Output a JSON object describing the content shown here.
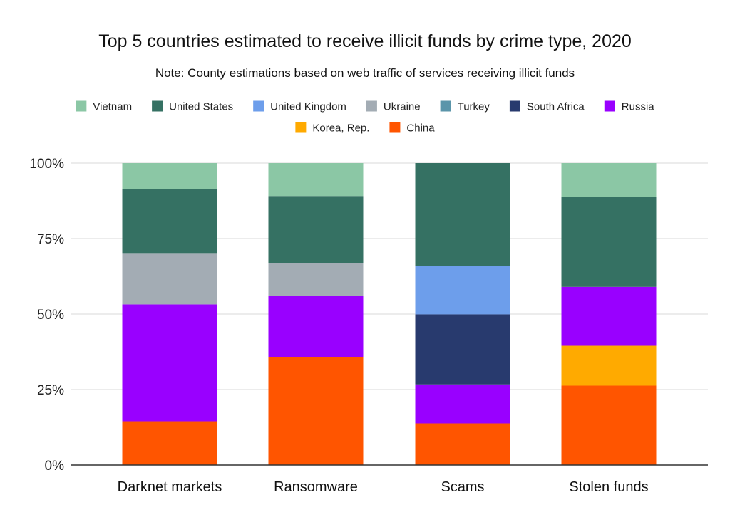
{
  "chart_data": {
    "type": "bar",
    "stacked": true,
    "percent": true,
    "title": "Top 5 countries estimated to receive illicit funds by crime type, 2020",
    "subtitle": "Note: County estimations based on web traffic of services receiving illicit funds",
    "categories": [
      "Darknet markets",
      "Ransomware",
      "Scams",
      "Stolen funds"
    ],
    "ylim": [
      0,
      100
    ],
    "yticks": [
      {
        "value": 0,
        "label": "0%"
      },
      {
        "value": 25,
        "label": "25%"
      },
      {
        "value": 50,
        "label": "50%"
      },
      {
        "value": 75,
        "label": "75%"
      },
      {
        "value": 100,
        "label": "100%"
      }
    ],
    "grid": true,
    "legend_position": "top",
    "legend_order": [
      "Vietnam",
      "United States",
      "United Kingdom",
      "Ukraine",
      "Turkey",
      "South Africa",
      "Russia",
      "Korea, Rep.",
      "China"
    ],
    "series": [
      {
        "name": "China",
        "color": "#ff5500",
        "values": [
          14.5,
          35.8,
          13.8,
          26.3
        ]
      },
      {
        "name": "Korea, Rep.",
        "color": "#ffaa00",
        "values": [
          0,
          0,
          0,
          13.2
        ]
      },
      {
        "name": "Russia",
        "color": "#9900ff",
        "values": [
          38.7,
          20.2,
          12.9,
          19.5
        ]
      },
      {
        "name": "South Africa",
        "color": "#283a6e",
        "values": [
          0,
          0,
          23.2,
          0
        ]
      },
      {
        "name": "Turkey",
        "color": "#5b95aa",
        "values": [
          0,
          0,
          0,
          0
        ]
      },
      {
        "name": "Ukraine",
        "color": "#a3acb4",
        "values": [
          17.0,
          10.8,
          0,
          0
        ]
      },
      {
        "name": "United Kingdom",
        "color": "#6d9eeb",
        "values": [
          0,
          0,
          16.1,
          0
        ]
      },
      {
        "name": "United States",
        "color": "#357163",
        "values": [
          21.3,
          22.3,
          34.0,
          29.8
        ]
      },
      {
        "name": "Vietnam",
        "color": "#8bc7a5",
        "values": [
          8.5,
          10.9,
          0,
          11.2
        ]
      }
    ]
  }
}
